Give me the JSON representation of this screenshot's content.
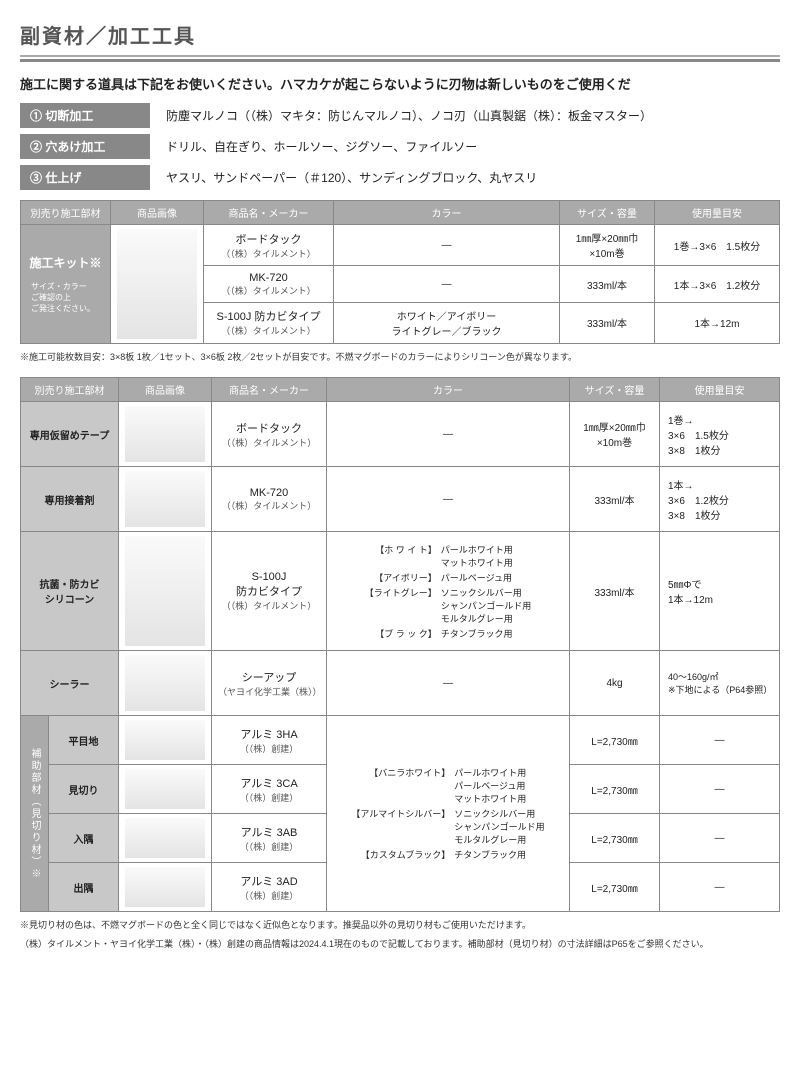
{
  "title": "副資材／加工工具",
  "intro": "施工に関する道具は下記をお使いください。ハマカケが起こらないように刃物は新しいものをご使用くだ",
  "processes": [
    {
      "label": "① 切断加工",
      "desc": "防塵マルノコ（（株）マキタ：防じんマルノコ）、ノコ刃（山真製鋸（株）：板金マスター）"
    },
    {
      "label": "② 穴あけ加工",
      "desc": "ドリル、自在ぎり、ホールソー、ジグソー、ファイルソー"
    },
    {
      "label": "③ 仕上げ",
      "desc": "ヤスリ、サンドペーパー（＃120）、サンディングブロック、丸ヤスリ"
    }
  ],
  "headers": {
    "c1": "別売り施工部材",
    "c2": "商品画像",
    "c3": "商品名・メーカー",
    "c4": "カラー",
    "c5": "サイズ・容量",
    "c6": "使用量目安"
  },
  "table1": {
    "side": "施工キット※",
    "side_sub": "サイズ・カラー\nご確認の上\nご発注ください。",
    "rows": [
      {
        "name": "ボードタック",
        "maker": "（（株）タイルメント）",
        "color": "—",
        "size": "1㎜厚×20㎜巾\n×10m巻",
        "usage": "1巻→3×6　1.5枚分"
      },
      {
        "name": "MK-720",
        "maker": "（（株）タイルメント）",
        "color": "—",
        "size": "333ml/本",
        "usage": "1本→3×6　1.2枚分"
      },
      {
        "name": "S-100J 防カビタイプ",
        "maker": "（（株）タイルメント）",
        "color": "ホワイト／アイボリー\nライトグレー／ブラック",
        "size": "333ml/本",
        "usage": "1本→12m"
      }
    ],
    "note": "※施工可能枚数目安：3×8板 1枚／1セット、3×6板 2枚／2セットが目安です。不燃マグボードのカラーによりシリコーン色が異なります。"
  },
  "table2": {
    "rows": [
      {
        "side": "専用仮留めテープ",
        "name": "ボードタック",
        "maker": "（（株）タイルメント）",
        "color": "—",
        "size": "1㎜厚×20㎜巾\n×10m巻",
        "usage": "1巻→\n3×6　1.5枚分\n3×8　1枚分"
      },
      {
        "side": "専用接着剤",
        "name": "MK-720",
        "maker": "（（株）タイルメント）",
        "color": "—",
        "size": "333ml/本",
        "usage": "1本→\n3×6　1.2枚分\n3×8　1枚分"
      },
      {
        "side": "抗菌・防カビ\nシリコーン",
        "name": "S-100J\n防カビタイプ",
        "maker": "（（株）タイルメント）",
        "colors": [
          [
            "【ホ ワ イ ト】",
            "パールホワイト用\nマットホワイト用"
          ],
          [
            "【アイボリー】",
            "パールベージュ用"
          ],
          [
            "【ライトグレー】",
            "ソニックシルバー用\nシャンパンゴールド用\nモルタルグレー用"
          ],
          [
            "【ブ ラ ッ ク】",
            "チタンブラック用"
          ]
        ],
        "size": "333ml/本",
        "usage": "5㎜Φで\n1本→12m"
      },
      {
        "side": "シーラー",
        "name": "シーアップ",
        "maker": "（ヤヨイ化学工業（株））",
        "color": "—",
        "size": "4kg",
        "usage": "40～160g/㎡\n※下地による（P64参照）",
        "usage_small": true
      }
    ],
    "aux_side": "補助部材（見切り材）※",
    "aux_rows": [
      {
        "side": "平目地",
        "name": "アルミ 3HA",
        "maker": "（（株）創建）",
        "size": "L=2,730㎜",
        "usage": "—"
      },
      {
        "side": "見切り",
        "name": "アルミ 3CA",
        "maker": "（（株）創建）",
        "size": "L=2,730㎜",
        "usage": "—"
      },
      {
        "side": "入隅",
        "name": "アルミ 3AB",
        "maker": "（（株）創建）",
        "size": "L=2,730㎜",
        "usage": "—"
      },
      {
        "side": "出隅",
        "name": "アルミ 3AD",
        "maker": "（（株）創建）",
        "size": "L=2,730㎜",
        "usage": "—"
      }
    ],
    "aux_colors": [
      [
        "【バニラホワイト】",
        "パールホワイト用\nパールベージュ用\nマットホワイト用"
      ],
      [
        "【アルマイトシルバー】",
        "ソニックシルバー用\nシャンパンゴールド用\nモルタルグレー用"
      ],
      [
        "【カスタムブラック】",
        "チタンブラック用"
      ]
    ],
    "note1": "※見切り材の色は、不燃マグボードの色と全く同じではなく近似色となります。推奨品以外の見切り材もご使用いただけます。",
    "note2": "（株）タイルメント・ヤヨイ化学工業（株）・（株）創建の商品情報は2024.4.1現在のもので記載しております。補助部材（見切り材）の寸法詳細はP65をご参照ください。"
  }
}
